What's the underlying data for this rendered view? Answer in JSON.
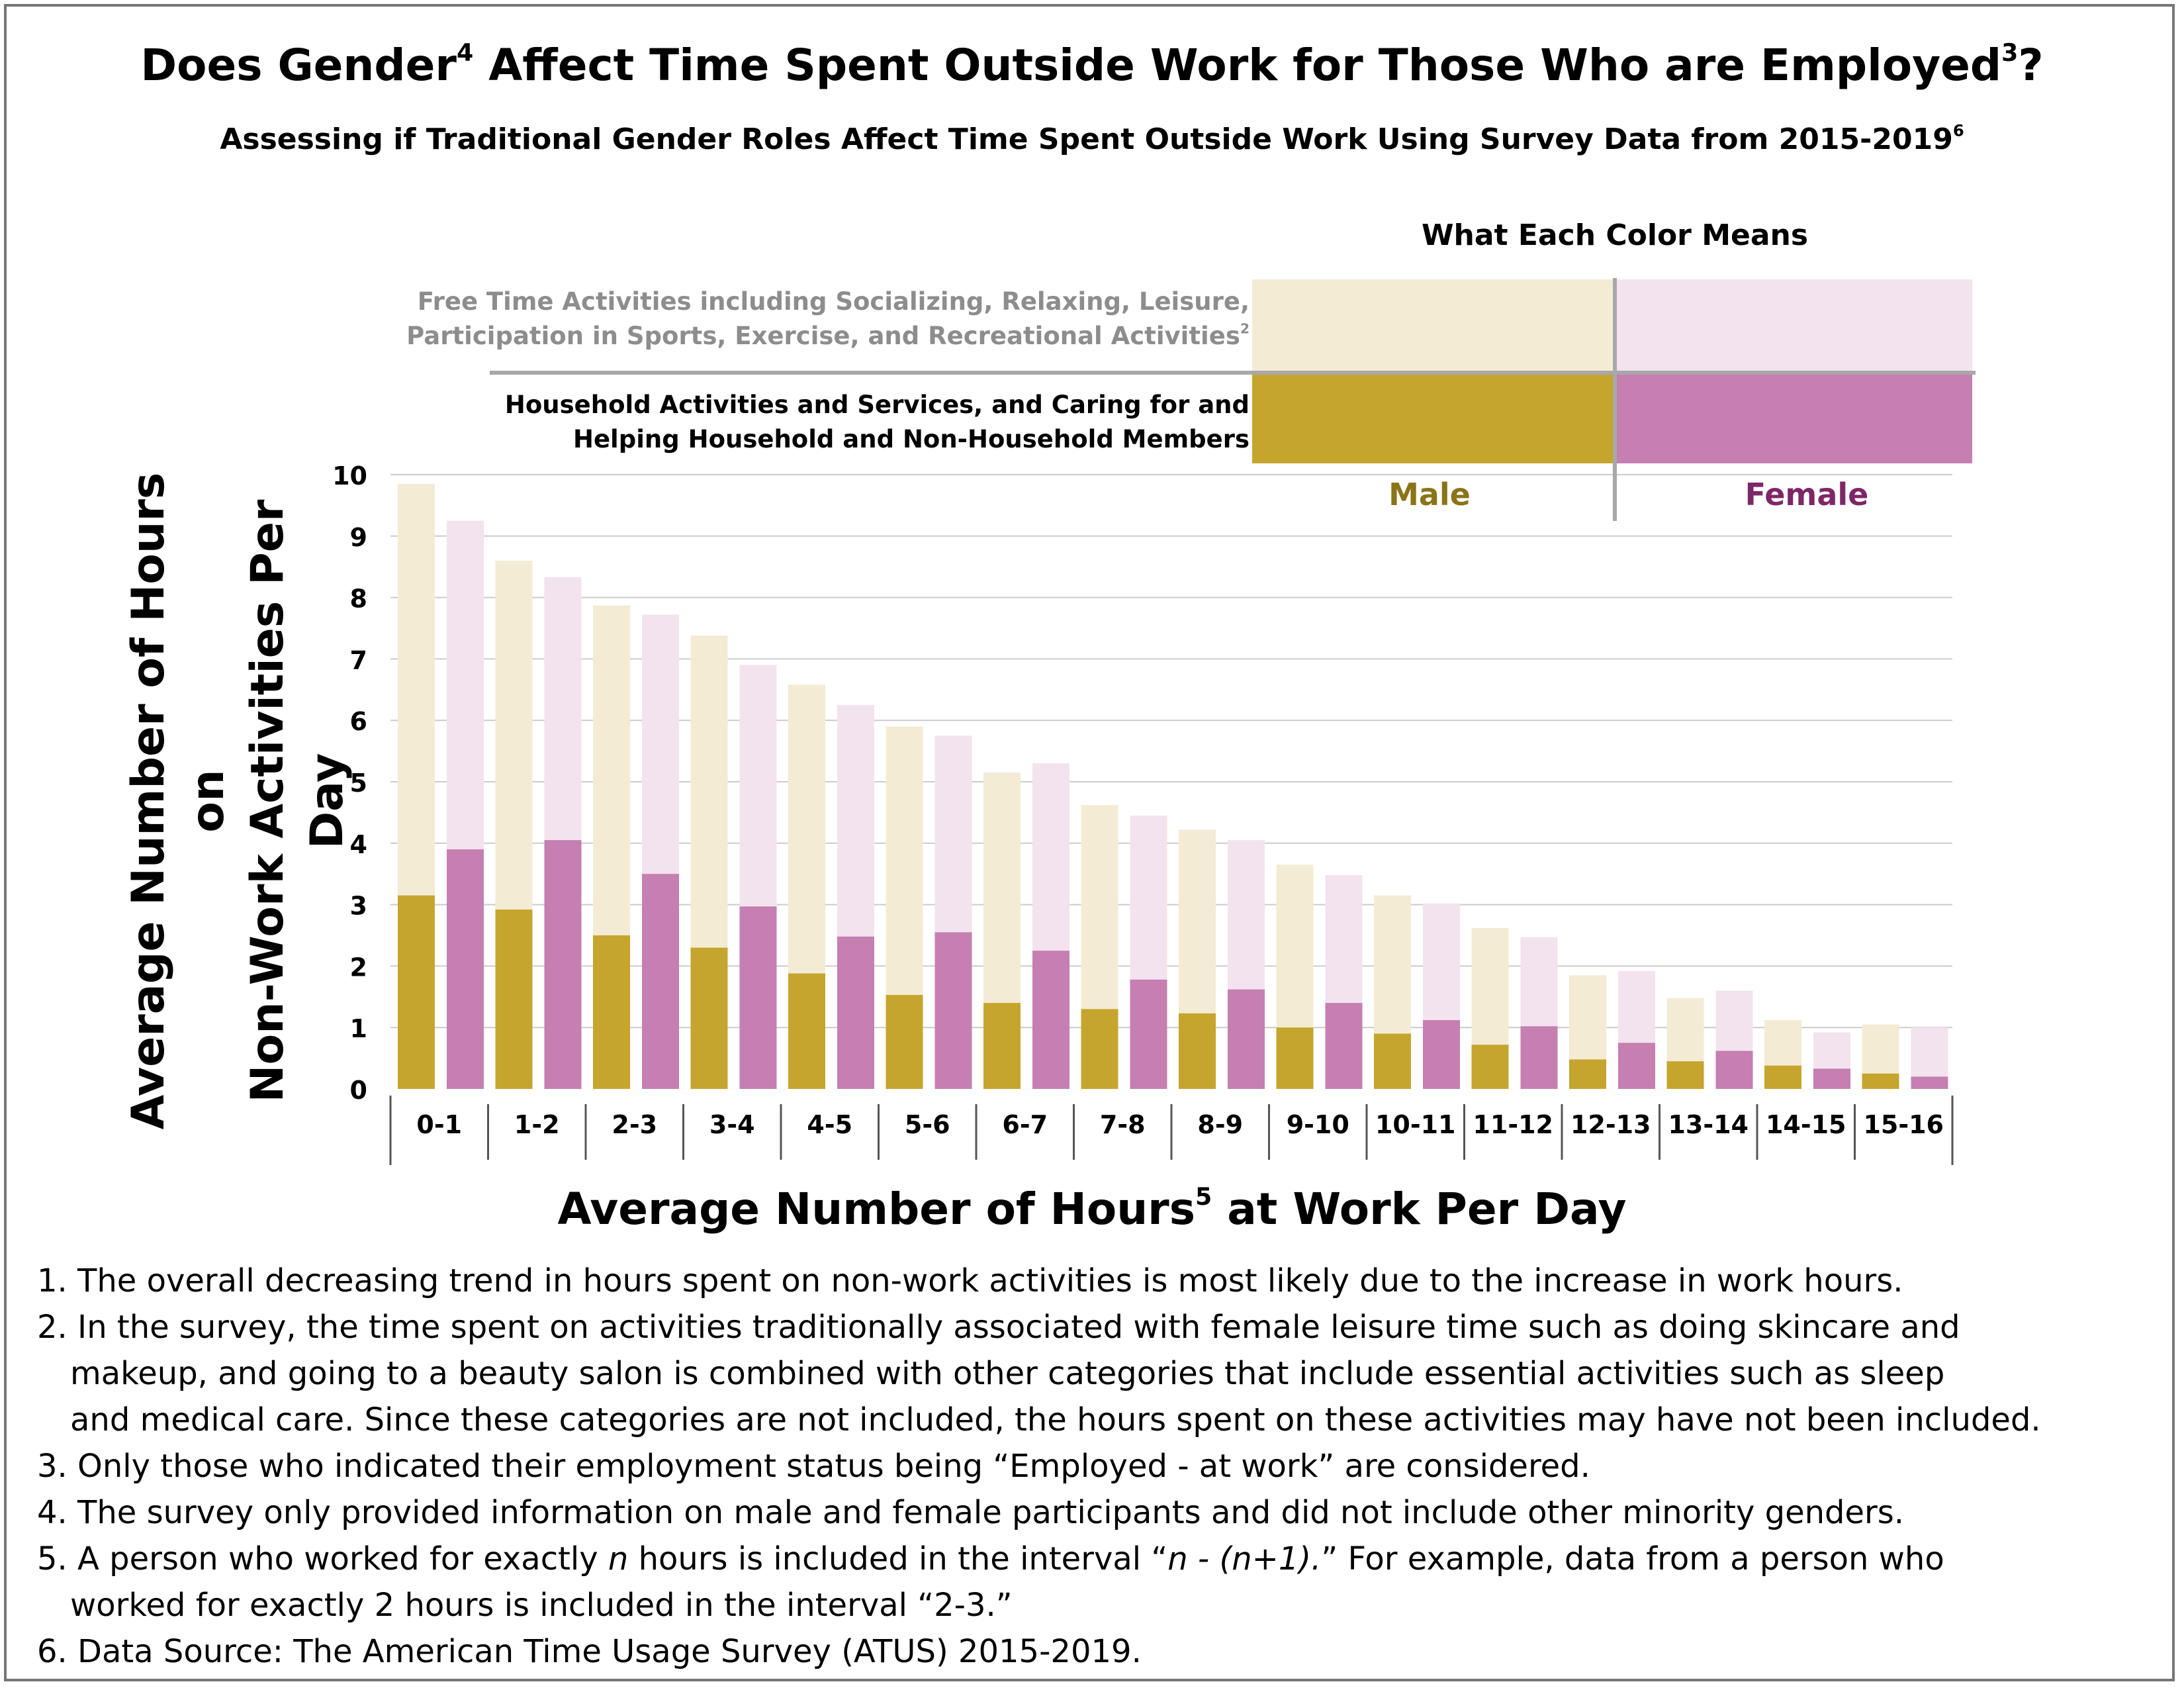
{
  "title": "Does Gender",
  "title_sup1": "4",
  "title_mid": " Affect Time Spent Outside Work for Those Who are Employed",
  "title_sup2": "3",
  "title_end": "?",
  "subtitle": "Assessing if Traditional Gender Roles Affect Time Spent Outside Work Using Survey Data from 2015-2019",
  "subtitle_sup": "6",
  "legend": {
    "heading": "What Each Color Means",
    "free_line1": "Free Time Activities including Socializing, Relaxing, Leisure,",
    "free_line2": "Participation in Sports, Exercise, and Recreational Activities",
    "free_sup": "2",
    "house_line1": "Household Activities and Services, and Caring for and",
    "house_line2": "Helping Household and Non-Household Members",
    "male": "Male",
    "female": "Female"
  },
  "colors": {
    "male_household": "#c6a52e",
    "male_free": "#f3ebd4",
    "female_household": "#c57fb1",
    "female_free": "#f3e3ee",
    "grid": "#cccccc"
  },
  "axes": {
    "ylabel_line1": "Average Number of Hours on",
    "ylabel_line2": "Non-Work Activities Per Day",
    "xlabel": "Average Number of Hours",
    "xlabel_sup": "5",
    "xlabel_end": " at Work Per Day"
  },
  "chart_data": {
    "type": "bar",
    "stacked": "overlaid",
    "ylim": [
      0,
      10
    ],
    "yticks": [
      "0",
      "1",
      "2",
      "3",
      "4",
      "5",
      "6",
      "7",
      "8",
      "9",
      "10"
    ],
    "categories": [
      "0-1",
      "1-2",
      "2-3",
      "3-4",
      "4-5",
      "5-6",
      "6-7",
      "7-8",
      "8-9",
      "9-10",
      "10-11",
      "11-12",
      "12-13",
      "13-14",
      "14-15",
      "15-16"
    ],
    "series": [
      {
        "name": "Male",
        "group": "Household Activities and Services, and Caring for and Helping Household and Non-Household Members",
        "values": [
          3.15,
          2.92,
          2.5,
          2.3,
          1.88,
          1.53,
          1.4,
          1.3,
          1.23,
          1.0,
          0.9,
          0.72,
          0.48,
          0.45,
          0.38,
          0.25
        ]
      },
      {
        "name": "Male",
        "group": "Free Time Activities (total height)",
        "values": [
          9.85,
          8.6,
          7.87,
          7.38,
          6.58,
          5.9,
          5.15,
          4.62,
          4.22,
          3.65,
          3.15,
          2.62,
          1.85,
          1.48,
          1.12,
          1.05
        ]
      },
      {
        "name": "Female",
        "group": "Household Activities and Services, and Caring for and Helping Household and Non-Household Members",
        "values": [
          3.9,
          4.05,
          3.5,
          2.97,
          2.48,
          2.55,
          2.25,
          1.78,
          1.62,
          1.4,
          1.12,
          1.02,
          0.75,
          0.62,
          0.33,
          0.2
        ]
      },
      {
        "name": "Female",
        "group": "Free Time Activities (total height)",
        "values": [
          9.25,
          8.33,
          7.72,
          6.9,
          6.25,
          5.75,
          5.3,
          4.45,
          4.05,
          3.48,
          3.02,
          2.47,
          1.92,
          1.6,
          0.92,
          1.0
        ]
      }
    ]
  },
  "notes": [
    "1. The overall decreasing trend in hours spent on non-work activities is most likely due to the increase in work hours.",
    "2. In the survey, the time spent on activities traditionally associated with female leisure time such as doing skincare and",
    "makeup, and going to a beauty salon is combined with other categories that include essential activities such as sleep",
    "and medical care. Since these categories are not included, the hours spent on these activities may have not been included.",
    "3. Only those who indicated their employment status being “Employed - at work” are considered.",
    "4. The survey only provided information on male and female participants and did not include other minority genders.",
    "5. A person who worked for exactly ",
    "n",
    " hours is included in the interval “",
    "n - (n+1).",
    "” For example, data from a person who",
    "worked for exactly 2 hours is included in the interval “2-3.”",
    "6. Data Source: The American Time Usage Survey (ATUS) 2015-2019."
  ]
}
